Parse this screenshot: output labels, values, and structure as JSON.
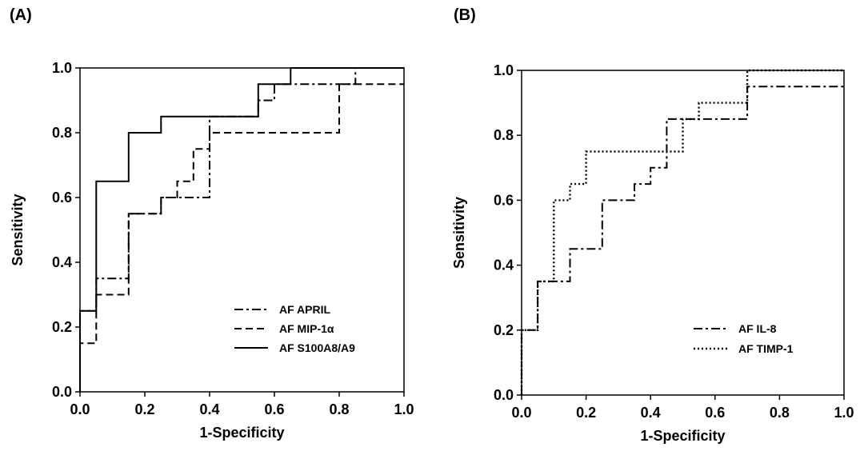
{
  "panels": [
    {
      "label": "(A)"
    },
    {
      "label": "(B)"
    }
  ],
  "chart_data": [
    {
      "type": "line",
      "step": true,
      "title": "",
      "xlabel": "1-Specificity",
      "ylabel": "Sensitivity",
      "xlim": [
        0,
        1
      ],
      "ylim": [
        0,
        1
      ],
      "xticks": [
        "0.0",
        "0.2",
        "0.4",
        "0.6",
        "0.8",
        "1.0"
      ],
      "yticks": [
        "0.0",
        "0.2",
        "0.4",
        "0.6",
        "0.8",
        "1.0"
      ],
      "grid": false,
      "legend_position": "bottom-right",
      "series": [
        {
          "name": "AF APRIL",
          "style": "dashdot",
          "x": [
            0,
            0,
            0.05,
            0.05,
            0.15,
            0.15,
            0.25,
            0.25,
            0.4,
            0.4,
            0.55,
            0.55,
            0.6,
            0.6,
            0.85,
            0.85,
            1.0
          ],
          "y": [
            0,
            0.25,
            0.25,
            0.35,
            0.35,
            0.55,
            0.55,
            0.6,
            0.6,
            0.85,
            0.85,
            0.9,
            0.9,
            0.95,
            0.95,
            1.0,
            1.0
          ]
        },
        {
          "name": "AF MIP-1α",
          "style": "dashed",
          "x": [
            0,
            0,
            0.05,
            0.05,
            0.15,
            0.15,
            0.25,
            0.25,
            0.3,
            0.3,
            0.35,
            0.35,
            0.4,
            0.4,
            0.6,
            0.6,
            0.8,
            0.8,
            1.0
          ],
          "y": [
            0,
            0.15,
            0.15,
            0.3,
            0.3,
            0.55,
            0.55,
            0.6,
            0.6,
            0.65,
            0.65,
            0.75,
            0.75,
            0.8,
            0.8,
            0.8,
            0.8,
            0.95,
            0.95
          ]
        },
        {
          "name": "AF S100A8/A9",
          "style": "solid",
          "x": [
            0,
            0,
            0.05,
            0.05,
            0.15,
            0.15,
            0.25,
            0.25,
            0.55,
            0.55,
            0.65,
            0.65,
            1.0
          ],
          "y": [
            0,
            0.25,
            0.25,
            0.65,
            0.65,
            0.8,
            0.8,
            0.85,
            0.85,
            0.95,
            0.95,
            1.0,
            1.0
          ]
        }
      ]
    },
    {
      "type": "line",
      "step": true,
      "title": "",
      "xlabel": "1-Specificity",
      "ylabel": "Sensitivity",
      "xlim": [
        0,
        1
      ],
      "ylim": [
        0,
        1
      ],
      "xticks": [
        "0.0",
        "0.2",
        "0.4",
        "0.6",
        "0.8",
        "1.0"
      ],
      "yticks": [
        "0.0",
        "0.2",
        "0.4",
        "0.6",
        "0.8",
        "1.0"
      ],
      "grid": false,
      "legend_position": "bottom-right",
      "series": [
        {
          "name": "AF IL-8",
          "style": "dashdot",
          "x": [
            0,
            0,
            0.05,
            0.05,
            0.15,
            0.15,
            0.25,
            0.25,
            0.35,
            0.35,
            0.4,
            0.4,
            0.45,
            0.45,
            0.7,
            0.7,
            1.0
          ],
          "y": [
            0,
            0.2,
            0.2,
            0.35,
            0.35,
            0.45,
            0.45,
            0.6,
            0.6,
            0.65,
            0.65,
            0.7,
            0.7,
            0.85,
            0.85,
            0.95,
            0.95
          ]
        },
        {
          "name": "AF TIMP-1",
          "style": "dotted",
          "x": [
            0,
            0,
            0.05,
            0.05,
            0.1,
            0.1,
            0.15,
            0.15,
            0.2,
            0.2,
            0.45,
            0.45,
            0.5,
            0.5,
            0.55,
            0.55,
            0.7,
            0.7,
            1.0
          ],
          "y": [
            0,
            0.2,
            0.2,
            0.35,
            0.35,
            0.6,
            0.6,
            0.65,
            0.65,
            0.75,
            0.75,
            0.75,
            0.75,
            0.85,
            0.85,
            0.9,
            0.9,
            1.0,
            1.0
          ]
        }
      ]
    }
  ]
}
